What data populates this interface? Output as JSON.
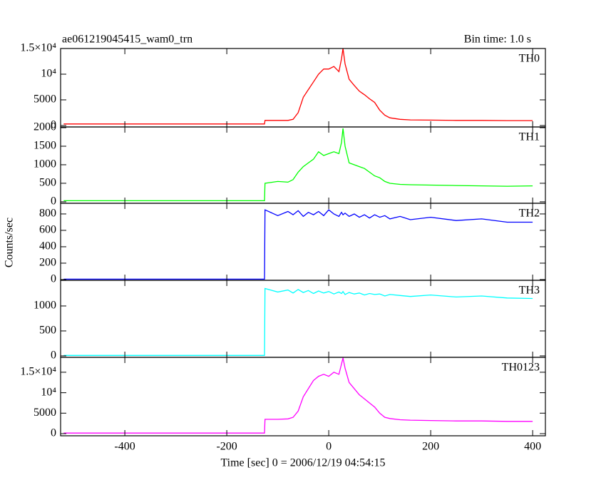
{
  "chart_data": [
    {
      "type": "line",
      "title": "ae061219045415_wam0_trn",
      "annotation": "Bin time: 1.0 s",
      "x": [
        -520,
        -126,
        -125,
        -100,
        -80,
        -70,
        -60,
        -50,
        -40,
        -30,
        -20,
        -10,
        0,
        10,
        20,
        25,
        28,
        32,
        40,
        50,
        60,
        70,
        80,
        90,
        100,
        110,
        120,
        140,
        160,
        200,
        250,
        300,
        350,
        400
      ],
      "xlim": [
        -526,
        425
      ],
      "xticks": [
        -400,
        -200,
        0,
        200,
        400
      ],
      "ylim": [
        -280,
        15000
      ],
      "yticks": [
        0,
        5000,
        {
          "value": 10000,
          "label": "10⁴"
        },
        {
          "value": 15000,
          "label": "1.5×10⁴"
        }
      ],
      "series": [
        {
          "name": "TH0",
          "color": "#ff0000",
          "values": [
            300,
            300,
            1000,
            1000,
            1000,
            1200,
            2500,
            5500,
            7000,
            8500,
            10000,
            11000,
            11000,
            11500,
            10500,
            13000,
            15000,
            12000,
            9000,
            7800,
            6700,
            6000,
            5200,
            4500,
            3000,
            2000,
            1500,
            1200,
            1100,
            1050,
            1000,
            1000,
            950,
            950
          ]
        }
      ]
    },
    {
      "type": "line",
      "x": [
        -520,
        -126,
        -125,
        -100,
        -80,
        -70,
        -60,
        -50,
        -40,
        -30,
        -20,
        -10,
        0,
        10,
        20,
        25,
        28,
        32,
        40,
        50,
        60,
        70,
        80,
        90,
        100,
        110,
        120,
        140,
        160,
        200,
        250,
        300,
        350,
        400
      ],
      "xlim": [
        -526,
        425
      ],
      "xticks": [
        -400,
        -200,
        0,
        200,
        400
      ],
      "ylim": [
        -40,
        2020
      ],
      "yticks": [
        0,
        500,
        1000,
        1500,
        2000
      ],
      "series": [
        {
          "name": "TH1",
          "color": "#00ff00",
          "values": [
            30,
            30,
            500,
            550,
            530,
            600,
            800,
            950,
            1050,
            1150,
            1350,
            1250,
            1300,
            1350,
            1300,
            1600,
            1980,
            1500,
            1050,
            1000,
            950,
            900,
            800,
            700,
            650,
            550,
            500,
            470,
            460,
            450,
            440,
            430,
            420,
            430
          ]
        }
      ]
    },
    {
      "type": "line",
      "ylabel": "Counts/sec",
      "x": [
        -520,
        -126,
        -125,
        -100,
        -80,
        -70,
        -60,
        -50,
        -40,
        -30,
        -20,
        -10,
        0,
        10,
        20,
        25,
        28,
        32,
        40,
        50,
        60,
        70,
        80,
        90,
        100,
        110,
        120,
        140,
        160,
        200,
        250,
        300,
        350,
        400
      ],
      "xlim": [
        -526,
        425
      ],
      "xticks": [
        -400,
        -200,
        0,
        200,
        400
      ],
      "ylim": [
        -9,
        930
      ],
      "yticks": [
        0,
        200,
        400,
        600,
        800
      ],
      "series": [
        {
          "name": "TH2",
          "color": "#0000ff",
          "values": [
            5,
            5,
            850,
            780,
            830,
            790,
            840,
            770,
            820,
            790,
            830,
            780,
            850,
            800,
            770,
            820,
            790,
            810,
            770,
            800,
            760,
            790,
            750,
            790,
            760,
            780,
            740,
            770,
            730,
            760,
            720,
            740,
            700,
            700
          ]
        }
      ]
    },
    {
      "type": "line",
      "x": [
        -520,
        -126,
        -125,
        -100,
        -80,
        -70,
        -60,
        -50,
        -40,
        -30,
        -20,
        -10,
        0,
        10,
        20,
        25,
        28,
        32,
        40,
        50,
        60,
        70,
        80,
        90,
        100,
        110,
        120,
        140,
        160,
        200,
        250,
        300,
        350,
        400
      ],
      "xlim": [
        -526,
        425
      ],
      "xticks": [
        -400,
        -200,
        0,
        200,
        400
      ],
      "ylim": [
        -29,
        1514
      ],
      "yticks": [
        0,
        500,
        1000
      ],
      "series": [
        {
          "name": "TH3",
          "color": "#00ffff",
          "values": [
            10,
            10,
            1350,
            1280,
            1320,
            1260,
            1330,
            1270,
            1310,
            1250,
            1300,
            1260,
            1290,
            1240,
            1280,
            1250,
            1290,
            1230,
            1270,
            1240,
            1260,
            1220,
            1250,
            1230,
            1240,
            1200,
            1230,
            1210,
            1190,
            1220,
            1180,
            1200,
            1160,
            1150
          ]
        }
      ]
    },
    {
      "type": "line",
      "xlabel": "Time [sec] 0 = 2006/12/19 04:54:15",
      "x": [
        -520,
        -126,
        -125,
        -100,
        -80,
        -70,
        -60,
        -50,
        -40,
        -30,
        -20,
        -10,
        0,
        10,
        20,
        25,
        28,
        32,
        40,
        50,
        60,
        70,
        80,
        90,
        100,
        110,
        120,
        140,
        160,
        200,
        250,
        300,
        350,
        400
      ],
      "xlim": [
        -526,
        425
      ],
      "xticks": [
        -400,
        -200,
        0,
        200,
        400
      ],
      "ylim": [
        -520,
        18640
      ],
      "yticks": [
        0,
        5000,
        {
          "value": 10000,
          "label": "10⁴"
        },
        {
          "value": 15000,
          "label": "1.5×10⁴"
        }
      ],
      "series": [
        {
          "name": "TH0123",
          "color": "#ff00ff",
          "values": [
            150,
            150,
            3500,
            3500,
            3600,
            4000,
            5500,
            9000,
            11000,
            13000,
            14000,
            14500,
            14000,
            15000,
            14500,
            17000,
            18500,
            16000,
            12500,
            11000,
            9500,
            8500,
            7500,
            6500,
            5000,
            4000,
            3700,
            3400,
            3300,
            3200,
            3100,
            3100,
            3000,
            3000
          ]
        }
      ]
    }
  ]
}
